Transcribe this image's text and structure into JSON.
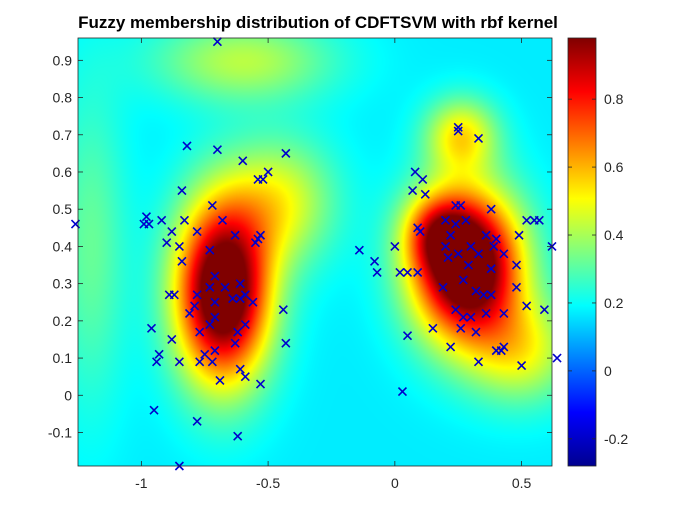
{
  "chart_data": {
    "type": "heatmap",
    "title": "Fuzzy membership distribution of CDFTSVM  with rbf kernel",
    "xlabel": "",
    "ylabel": "",
    "xlim": [
      -1.25,
      0.62
    ],
    "ylim": [
      -0.19,
      0.96
    ],
    "xticks": [
      -1,
      -0.5,
      0,
      0.5
    ],
    "xtick_labels": [
      "-1",
      "-0.5",
      "0",
      "0.5"
    ],
    "yticks": [
      -0.1,
      0,
      0.1,
      0.2,
      0.3,
      0.4,
      0.5,
      0.6,
      0.7,
      0.8,
      0.9
    ],
    "ytick_labels": [
      "-0.1",
      "0",
      "0.1",
      "0.2",
      "0.3",
      "0.4",
      "0.5",
      "0.6",
      "0.7",
      "0.8",
      "0.9"
    ],
    "grid": false,
    "colormap": "jet",
    "colorbar": {
      "range": [
        -0.28,
        0.98
      ],
      "ticks": [
        -0.2,
        0,
        0.2,
        0.4,
        0.6,
        0.8
      ],
      "tick_labels": [
        "-0.2",
        "0",
        "0.2",
        "0.4",
        "0.6",
        "0.8"
      ]
    },
    "membership_peaks": [
      {
        "x": -0.68,
        "y": 0.28,
        "sx": 0.13,
        "sy": 0.17,
        "amp": 1.0
      },
      {
        "x": 0.28,
        "y": 0.35,
        "sx": 0.15,
        "sy": 0.14,
        "amp": 1.04
      },
      {
        "x": 0.16,
        "y": 0.44,
        "sx": 0.09,
        "sy": 0.07,
        "amp": 0.3
      },
      {
        "x": -0.45,
        "y": 0.52,
        "sx": 0.15,
        "sy": 0.12,
        "amp": 0.3
      },
      {
        "x": 0.26,
        "y": 0.7,
        "sx": 0.1,
        "sy": 0.07,
        "amp": 0.35
      },
      {
        "x": -0.6,
        "y": 0.9,
        "sx": 0.25,
        "sy": 0.08,
        "amp": 0.25
      },
      {
        "x": 0.5,
        "y": 0.12,
        "sx": 0.15,
        "sy": 0.1,
        "amp": 0.3
      },
      {
        "x": -1.2,
        "y": 0.4,
        "sx": 0.1,
        "sy": 0.3,
        "amp": 0.15
      }
    ],
    "membership_background": 0.17,
    "marker_color": "#0000cc",
    "marker": "x",
    "points": [
      {
        "x": -0.7,
        "y": 0.95
      },
      {
        "x": -0.82,
        "y": 0.67
      },
      {
        "x": -0.7,
        "y": 0.66
      },
      {
        "x": -0.6,
        "y": 0.63
      },
      {
        "x": -0.43,
        "y": 0.65
      },
      {
        "x": -0.5,
        "y": 0.6
      },
      {
        "x": -0.52,
        "y": 0.58
      },
      {
        "x": -0.54,
        "y": 0.58
      },
      {
        "x": -0.84,
        "y": 0.55
      },
      {
        "x": -0.72,
        "y": 0.51
      },
      {
        "x": -1.26,
        "y": 0.46
      },
      {
        "x": -0.98,
        "y": 0.48
      },
      {
        "x": -0.97,
        "y": 0.46
      },
      {
        "x": -0.99,
        "y": 0.46
      },
      {
        "x": -0.92,
        "y": 0.47
      },
      {
        "x": -0.83,
        "y": 0.47
      },
      {
        "x": -0.68,
        "y": 0.47
      },
      {
        "x": -0.88,
        "y": 0.44
      },
      {
        "x": -0.78,
        "y": 0.44
      },
      {
        "x": -0.63,
        "y": 0.43
      },
      {
        "x": -0.54,
        "y": 0.42
      },
      {
        "x": -0.53,
        "y": 0.43
      },
      {
        "x": -0.55,
        "y": 0.41
      },
      {
        "x": -0.9,
        "y": 0.41
      },
      {
        "x": -0.85,
        "y": 0.4
      },
      {
        "x": -0.73,
        "y": 0.39
      },
      {
        "x": -0.84,
        "y": 0.36
      },
      {
        "x": -0.71,
        "y": 0.32
      },
      {
        "x": -0.73,
        "y": 0.29
      },
      {
        "x": -0.78,
        "y": 0.27
      },
      {
        "x": -0.87,
        "y": 0.27
      },
      {
        "x": -0.89,
        "y": 0.27
      },
      {
        "x": -0.67,
        "y": 0.29
      },
      {
        "x": -0.64,
        "y": 0.26
      },
      {
        "x": -0.61,
        "y": 0.3
      },
      {
        "x": -0.61,
        "y": 0.26
      },
      {
        "x": -0.59,
        "y": 0.27
      },
      {
        "x": -0.56,
        "y": 0.25
      },
      {
        "x": -0.71,
        "y": 0.25
      },
      {
        "x": -0.79,
        "y": 0.24
      },
      {
        "x": -0.81,
        "y": 0.22
      },
      {
        "x": -0.71,
        "y": 0.21
      },
      {
        "x": -0.73,
        "y": 0.19
      },
      {
        "x": -0.59,
        "y": 0.19
      },
      {
        "x": -0.62,
        "y": 0.17
      },
      {
        "x": -0.77,
        "y": 0.17
      },
      {
        "x": -0.88,
        "y": 0.15
      },
      {
        "x": -0.63,
        "y": 0.14
      },
      {
        "x": -0.71,
        "y": 0.12
      },
      {
        "x": -0.75,
        "y": 0.11
      },
      {
        "x": -0.93,
        "y": 0.11
      },
      {
        "x": -0.94,
        "y": 0.09
      },
      {
        "x": -0.85,
        "y": 0.09
      },
      {
        "x": -0.77,
        "y": 0.09
      },
      {
        "x": -0.72,
        "y": 0.09
      },
      {
        "x": -0.61,
        "y": 0.07
      },
      {
        "x": -0.59,
        "y": 0.05
      },
      {
        "x": -0.69,
        "y": 0.04
      },
      {
        "x": -0.53,
        "y": 0.03
      },
      {
        "x": -0.95,
        "y": -0.04
      },
      {
        "x": -0.78,
        "y": -0.07
      },
      {
        "x": -0.62,
        "y": -0.11
      },
      {
        "x": -0.85,
        "y": -0.19
      },
      {
        "x": -0.96,
        "y": 0.18
      },
      {
        "x": -0.44,
        "y": 0.23
      },
      {
        "x": -0.43,
        "y": 0.14
      },
      {
        "x": 0.25,
        "y": 0.72
      },
      {
        "x": 0.25,
        "y": 0.71
      },
      {
        "x": 0.33,
        "y": 0.69
      },
      {
        "x": 0.08,
        "y": 0.6
      },
      {
        "x": 0.11,
        "y": 0.58
      },
      {
        "x": 0.07,
        "y": 0.55
      },
      {
        "x": 0.12,
        "y": 0.54
      },
      {
        "x": 0.24,
        "y": 0.51
      },
      {
        "x": 0.26,
        "y": 0.51
      },
      {
        "x": 0.38,
        "y": 0.5
      },
      {
        "x": 0.2,
        "y": 0.47
      },
      {
        "x": 0.24,
        "y": 0.46
      },
      {
        "x": 0.28,
        "y": 0.47
      },
      {
        "x": 0.09,
        "y": 0.45
      },
      {
        "x": 0.1,
        "y": 0.44
      },
      {
        "x": 0.22,
        "y": 0.43
      },
      {
        "x": 0.36,
        "y": 0.43
      },
      {
        "x": 0.4,
        "y": 0.42
      },
      {
        "x": 0.39,
        "y": 0.4
      },
      {
        "x": 0.3,
        "y": 0.4
      },
      {
        "x": 0.2,
        "y": 0.4
      },
      {
        "x": 0.25,
        "y": 0.38
      },
      {
        "x": 0.33,
        "y": 0.38
      },
      {
        "x": 0.43,
        "y": 0.38
      },
      {
        "x": 0.49,
        "y": 0.43
      },
      {
        "x": 0.52,
        "y": 0.47
      },
      {
        "x": 0.55,
        "y": 0.47
      },
      {
        "x": 0.57,
        "y": 0.47
      },
      {
        "x": 0.62,
        "y": 0.4
      },
      {
        "x": -0.14,
        "y": 0.39
      },
      {
        "x": 0.0,
        "y": 0.4
      },
      {
        "x": -0.08,
        "y": 0.36
      },
      {
        "x": -0.07,
        "y": 0.33
      },
      {
        "x": 0.02,
        "y": 0.33
      },
      {
        "x": 0.05,
        "y": 0.33
      },
      {
        "x": 0.09,
        "y": 0.33
      },
      {
        "x": 0.21,
        "y": 0.37
      },
      {
        "x": 0.29,
        "y": 0.35
      },
      {
        "x": 0.38,
        "y": 0.34
      },
      {
        "x": 0.48,
        "y": 0.35
      },
      {
        "x": 0.19,
        "y": 0.29
      },
      {
        "x": 0.27,
        "y": 0.31
      },
      {
        "x": 0.32,
        "y": 0.28
      },
      {
        "x": 0.35,
        "y": 0.27
      },
      {
        "x": 0.38,
        "y": 0.27
      },
      {
        "x": 0.48,
        "y": 0.29
      },
      {
        "x": 0.24,
        "y": 0.23
      },
      {
        "x": 0.27,
        "y": 0.21
      },
      {
        "x": 0.3,
        "y": 0.21
      },
      {
        "x": 0.36,
        "y": 0.22
      },
      {
        "x": 0.43,
        "y": 0.22
      },
      {
        "x": 0.52,
        "y": 0.24
      },
      {
        "x": 0.59,
        "y": 0.23
      },
      {
        "x": 0.15,
        "y": 0.18
      },
      {
        "x": 0.26,
        "y": 0.18
      },
      {
        "x": 0.32,
        "y": 0.17
      },
      {
        "x": 0.05,
        "y": 0.16
      },
      {
        "x": 0.22,
        "y": 0.13
      },
      {
        "x": 0.43,
        "y": 0.13
      },
      {
        "x": 0.42,
        "y": 0.12
      },
      {
        "x": 0.4,
        "y": 0.12
      },
      {
        "x": 0.33,
        "y": 0.09
      },
      {
        "x": 0.5,
        "y": 0.08
      },
      {
        "x": 0.64,
        "y": 0.1
      },
      {
        "x": 0.03,
        "y": 0.01
      }
    ]
  }
}
